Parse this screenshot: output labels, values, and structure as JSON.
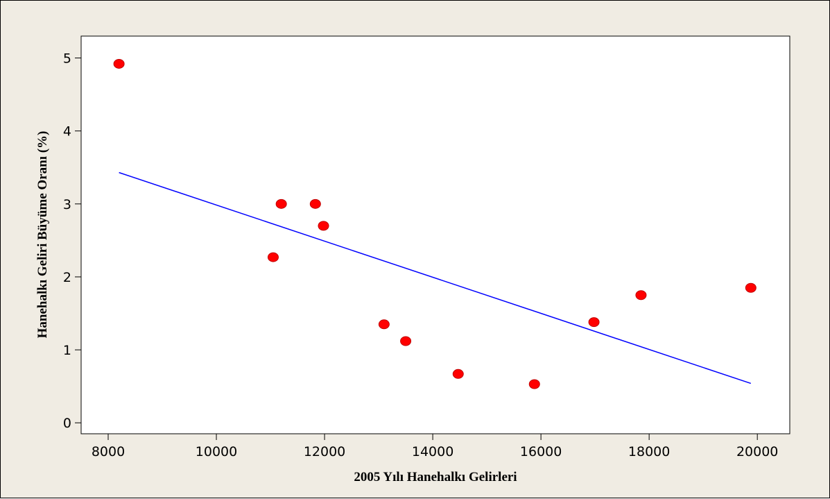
{
  "chart_data": {
    "type": "scatter",
    "title": "",
    "xlabel": "2005 Yılı Hanehalkı Gelirleri",
    "ylabel": "Hanehalkı Geliri Büyüme Oranı (%)",
    "xlim": [
      7500,
      20600
    ],
    "ylim": [
      -0.15,
      5.3
    ],
    "xticks": [
      8000,
      10000,
      12000,
      14000,
      16000,
      18000,
      20000
    ],
    "yticks": [
      0,
      1,
      2,
      3,
      4,
      5
    ],
    "grid": false,
    "legend": "none",
    "series": [
      {
        "x": [
          8200,
          11050,
          11200,
          11830,
          11980,
          13100,
          13500,
          14470,
          15880,
          16980,
          17850,
          19880
        ],
        "y": [
          4.92,
          2.27,
          3.0,
          3.0,
          2.7,
          1.35,
          1.12,
          0.67,
          0.53,
          1.38,
          1.75,
          1.85
        ]
      }
    ],
    "trendline": {
      "x": [
        8200,
        19880
      ],
      "y": [
        3.43,
        0.54
      ]
    },
    "colors": {
      "points": "#ff0000",
      "trendline": "#0000ff",
      "background": "#f0ece3",
      "plot": "#ffffff"
    }
  }
}
